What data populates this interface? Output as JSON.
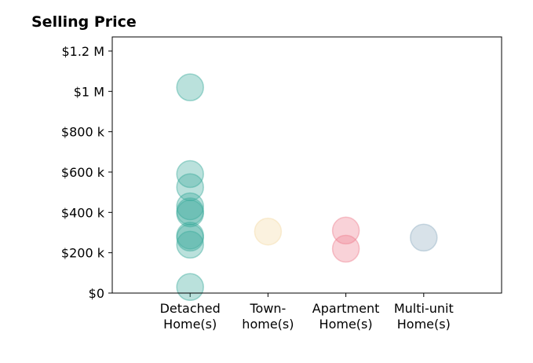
{
  "chart_data": {
    "type": "scatter",
    "title": "Selling Price",
    "xlabel": "",
    "ylabel": "",
    "categories": [
      [
        "Detached",
        "Home(s)"
      ],
      [
        "Town-",
        "home(s)"
      ],
      [
        "Apartment",
        "Home(s)"
      ],
      [
        "Multi-unit",
        "Home(s)"
      ]
    ],
    "ylim": [
      0,
      1270000
    ],
    "yticks": [
      0,
      200000,
      400000,
      600000,
      800000,
      1000000,
      1200000
    ],
    "ytick_labels": [
      "$0",
      "$200 k",
      "$400 k",
      "$600 k",
      "$800 k",
      "$1 M",
      "$1.2 M"
    ],
    "grid": false,
    "legend": "none",
    "series": [
      {
        "category": "Detached Home(s)",
        "color": "#3aaa9c",
        "values": [
          1020000,
          590000,
          525000,
          430000,
          405000,
          395000,
          285000,
          275000,
          240000,
          30000
        ]
      },
      {
        "category": "Town-home(s)",
        "color": "#f3d9a4",
        "values": [
          305000
        ]
      },
      {
        "category": "Apartment Home(s)",
        "color": "#ee7f8e",
        "values": [
          310000,
          220000
        ]
      },
      {
        "category": "Multi-unit Home(s)",
        "color": "#8fadc0",
        "values": [
          275000
        ]
      }
    ],
    "marker_opacity": 0.35
  }
}
